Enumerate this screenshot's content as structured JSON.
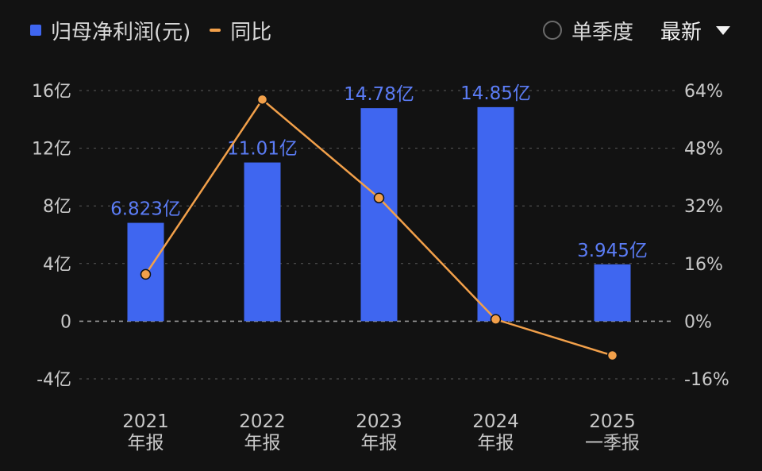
{
  "legend": {
    "bar_label": "归母净利润(元)",
    "line_label": "同比"
  },
  "controls": {
    "quarter_label": "单季度",
    "period_label": "最新"
  },
  "colors": {
    "bar": "#3f66f0",
    "line": "#f2a04a",
    "bar_label": "#5b7cf5",
    "axis_text": "#c8c8c8",
    "grid": "#5a5a5a",
    "background": "#121212"
  },
  "chart_data": {
    "type": "bar",
    "categories": [
      [
        "2021",
        "年报"
      ],
      [
        "2022",
        "年报"
      ],
      [
        "2023",
        "年报"
      ],
      [
        "2024",
        "年报"
      ],
      [
        "2025",
        "一季报"
      ]
    ],
    "series": [
      {
        "name": "归母净利润(元)",
        "type": "bar",
        "axis": "left",
        "values": [
          6.823,
          11.01,
          14.78,
          14.85,
          3.945
        ],
        "labels": [
          "6.823亿",
          "11.01亿",
          "14.78亿",
          "14.85亿",
          "3.945亿"
        ]
      },
      {
        "name": "同比",
        "type": "line",
        "axis": "right",
        "values": [
          13.0,
          61.5,
          34.2,
          0.5,
          -9.5
        ]
      }
    ],
    "y_left": {
      "ticks": [
        16,
        12,
        8,
        4,
        0,
        -4
      ],
      "tick_labels": [
        "16亿",
        "12亿",
        "8亿",
        "4亿",
        "0",
        "-4亿"
      ],
      "range": [
        -4,
        16
      ]
    },
    "y_right": {
      "ticks": [
        64,
        48,
        32,
        16,
        0,
        -16
      ],
      "tick_labels": [
        "64%",
        "48%",
        "32%",
        "16%",
        "0%",
        "-16%"
      ],
      "range": [
        -16,
        64
      ]
    },
    "grid": true,
    "legend_position": "top-left"
  }
}
